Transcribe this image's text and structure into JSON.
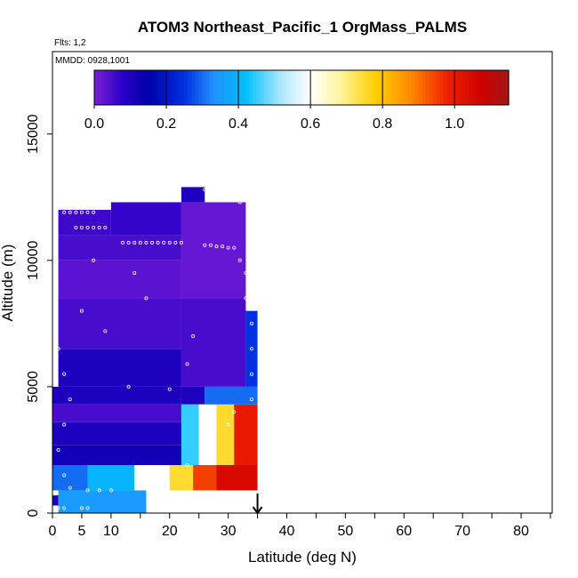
{
  "chart_data": {
    "type": "heatmap",
    "title": "ATOM3 Northeast_Pacific_1 OrgMass_PALMS",
    "flights_label": "Flts: 1,2",
    "dates_label": "MMDD: 0928,1001",
    "xlabel": "Latitude (deg N)",
    "ylabel": "Altitude (m)",
    "xlim": [
      0,
      85
    ],
    "ylim": [
      0,
      17500
    ],
    "x_ticks": [
      0,
      5,
      10,
      20,
      30,
      40,
      50,
      60,
      70,
      80
    ],
    "x_tick_labels": [
      "0",
      "5",
      "10",
      "20",
      "30",
      "40",
      "50",
      "60",
      "70",
      "80"
    ],
    "x_minor_ticks": [
      15,
      25,
      35,
      45,
      55,
      65,
      75,
      85
    ],
    "y_ticks": [
      0,
      5000,
      10000,
      15000
    ],
    "y_tick_labels": [
      "0",
      "5000",
      "10000",
      "15000"
    ],
    "colorbar": {
      "min": 0.0,
      "max": 1.15,
      "tick_values": [
        0.0,
        0.2,
        0.4,
        0.6,
        0.8,
        1.0
      ],
      "tick_labels": [
        "0.0",
        "0.2",
        "0.4",
        "0.6",
        "0.8",
        "1.0"
      ],
      "stops": [
        {
          "v": 0.0,
          "color": "#7a1fd6"
        },
        {
          "v": 0.08,
          "color": "#2a00c8"
        },
        {
          "v": 0.15,
          "color": "#0000a8"
        },
        {
          "v": 0.25,
          "color": "#0030e0"
        },
        {
          "v": 0.33,
          "color": "#2090ff"
        },
        {
          "v": 0.42,
          "color": "#00c0ff"
        },
        {
          "v": 0.52,
          "color": "#b0e8ff"
        },
        {
          "v": 0.6,
          "color": "#ffffff"
        },
        {
          "v": 0.68,
          "color": "#fff4a0"
        },
        {
          "v": 0.78,
          "color": "#ffd000"
        },
        {
          "v": 0.88,
          "color": "#ff8800"
        },
        {
          "v": 0.98,
          "color": "#ee2000"
        },
        {
          "v": 1.08,
          "color": "#cc0000"
        },
        {
          "v": 1.15,
          "color": "#a01818"
        }
      ]
    },
    "cells": [
      {
        "x": [
          0,
          1
        ],
        "y": [
          300,
          700
        ],
        "v": 0.1
      },
      {
        "x": [
          1,
          16
        ],
        "y": [
          0,
          900
        ],
        "v": 0.35
      },
      {
        "x": [
          0,
          6
        ],
        "y": [
          900,
          1900
        ],
        "v": 0.3
      },
      {
        "x": [
          6,
          14
        ],
        "y": [
          900,
          1900
        ],
        "v": 0.4
      },
      {
        "x": [
          14,
          20
        ],
        "y": [
          900,
          1900
        ],
        "v": 0.6
      },
      {
        "x": [
          20,
          24
        ],
        "y": [
          900,
          1900
        ],
        "v": 0.75
      },
      {
        "x": [
          24,
          28
        ],
        "y": [
          900,
          1900
        ],
        "v": 0.95
      },
      {
        "x": [
          28,
          35
        ],
        "y": [
          900,
          1900
        ],
        "v": 1.05
      },
      {
        "x": [
          0,
          22
        ],
        "y": [
          1900,
          2700
        ],
        "v": 0.12
      },
      {
        "x": [
          0,
          22
        ],
        "y": [
          2700,
          3600
        ],
        "v": 0.1
      },
      {
        "x": [
          0,
          22
        ],
        "y": [
          3600,
          4300
        ],
        "v": 0.05
      },
      {
        "x": [
          0,
          22
        ],
        "y": [
          4300,
          5000
        ],
        "v": 0.1
      },
      {
        "x": [
          1,
          22
        ],
        "y": [
          5000,
          6500
        ],
        "v": 0.1
      },
      {
        "x": [
          1,
          22
        ],
        "y": [
          6500,
          8500
        ],
        "v": 0.05
      },
      {
        "x": [
          1,
          22
        ],
        "y": [
          8500,
          10000
        ],
        "v": 0.03
      },
      {
        "x": [
          1,
          22
        ],
        "y": [
          10000,
          11000
        ],
        "v": 0.05
      },
      {
        "x": [
          1,
          10
        ],
        "y": [
          11000,
          12000
        ],
        "v": 0.06
      },
      {
        "x": [
          10,
          22
        ],
        "y": [
          11000,
          12300
        ],
        "v": 0.07
      },
      {
        "x": [
          22,
          26
        ],
        "y": [
          12300,
          12900
        ],
        "v": 0.1
      },
      {
        "x": [
          22,
          33
        ],
        "y": [
          8500,
          12300
        ],
        "v": 0.02
      },
      {
        "x": [
          22,
          33
        ],
        "y": [
          5000,
          8500
        ],
        "v": 0.05
      },
      {
        "x": [
          22,
          26
        ],
        "y": [
          4300,
          5000
        ],
        "v": 0.1
      },
      {
        "x": [
          22,
          25
        ],
        "y": [
          1900,
          4300
        ],
        "v": 0.45
      },
      {
        "x": [
          25,
          28
        ],
        "y": [
          1900,
          4300
        ],
        "v": 0.6
      },
      {
        "x": [
          28,
          31
        ],
        "y": [
          1900,
          4300
        ],
        "v": 0.75
      },
      {
        "x": [
          31,
          35
        ],
        "y": [
          1900,
          4300
        ],
        "v": 1.0
      },
      {
        "x": [
          26,
          35
        ],
        "y": [
          4300,
          5000
        ],
        "v": 0.3
      },
      {
        "x": [
          33,
          35
        ],
        "y": [
          5000,
          8000
        ],
        "v": 0.25
      }
    ],
    "measurement_points": [
      {
        "x": 4,
        "y": 11300
      },
      {
        "x": 5,
        "y": 11300
      },
      {
        "x": 6,
        "y": 11300
      },
      {
        "x": 7,
        "y": 11300
      },
      {
        "x": 8,
        "y": 11300
      },
      {
        "x": 9,
        "y": 11300
      },
      {
        "x": 12,
        "y": 10700
      },
      {
        "x": 13,
        "y": 10700
      },
      {
        "x": 14,
        "y": 10700
      },
      {
        "x": 15,
        "y": 10700
      },
      {
        "x": 16,
        "y": 10700
      },
      {
        "x": 17,
        "y": 10700
      },
      {
        "x": 18,
        "y": 10700
      },
      {
        "x": 19,
        "y": 10700
      },
      {
        "x": 20,
        "y": 10700
      },
      {
        "x": 21,
        "y": 10700
      },
      {
        "x": 22,
        "y": 10700
      },
      {
        "x": 26,
        "y": 10600
      },
      {
        "x": 27,
        "y": 10600
      },
      {
        "x": 28,
        "y": 10550
      },
      {
        "x": 29,
        "y": 10550
      },
      {
        "x": 30,
        "y": 10500
      },
      {
        "x": 31,
        "y": 10500
      },
      {
        "x": 26,
        "y": 12800
      },
      {
        "x": 27,
        "y": 12800
      },
      {
        "x": 28,
        "y": 12700
      },
      {
        "x": 29,
        "y": 12600
      },
      {
        "x": 30,
        "y": 12500
      },
      {
        "x": 31,
        "y": 12400
      },
      {
        "x": 32,
        "y": 12300
      },
      {
        "x": 2,
        "y": 11900
      },
      {
        "x": 3,
        "y": 11900
      },
      {
        "x": 4,
        "y": 11900
      },
      {
        "x": 5,
        "y": 11900
      },
      {
        "x": 6,
        "y": 11900
      },
      {
        "x": 7,
        "y": 11900
      },
      {
        "x": 32,
        "y": 10000
      },
      {
        "x": 33,
        "y": 9500
      },
      {
        "x": 33,
        "y": 8500
      },
      {
        "x": 34,
        "y": 7500
      },
      {
        "x": 34,
        "y": 6500
      },
      {
        "x": 34,
        "y": 5500
      },
      {
        "x": 34,
        "y": 4500
      },
      {
        "x": 1,
        "y": 6500
      },
      {
        "x": 2,
        "y": 5500
      },
      {
        "x": 3,
        "y": 4500
      },
      {
        "x": 2,
        "y": 3500
      },
      {
        "x": 1,
        "y": 2500
      },
      {
        "x": 2,
        "y": 1500
      },
      {
        "x": 3,
        "y": 1000
      },
      {
        "x": 6,
        "y": 900
      },
      {
        "x": 8,
        "y": 900
      },
      {
        "x": 10,
        "y": 900
      },
      {
        "x": 1,
        "y": 200
      },
      {
        "x": 2,
        "y": 200
      },
      {
        "x": 5,
        "y": 200
      },
      {
        "x": 6,
        "y": 200
      },
      {
        "x": 9,
        "y": 7200
      },
      {
        "x": 14,
        "y": 9500
      },
      {
        "x": 16,
        "y": 8500
      },
      {
        "x": 20,
        "y": 4900
      },
      {
        "x": 24,
        "y": 7000
      },
      {
        "x": 23,
        "y": 5900
      },
      {
        "x": 23,
        "y": 1900
      },
      {
        "x": 13,
        "y": 5000
      },
      {
        "x": 7,
        "y": 10000
      },
      {
        "x": 5,
        "y": 8000
      },
      {
        "x": 30,
        "y": 3500
      },
      {
        "x": 31,
        "y": 4000
      }
    ],
    "arrow_x": 35
  }
}
